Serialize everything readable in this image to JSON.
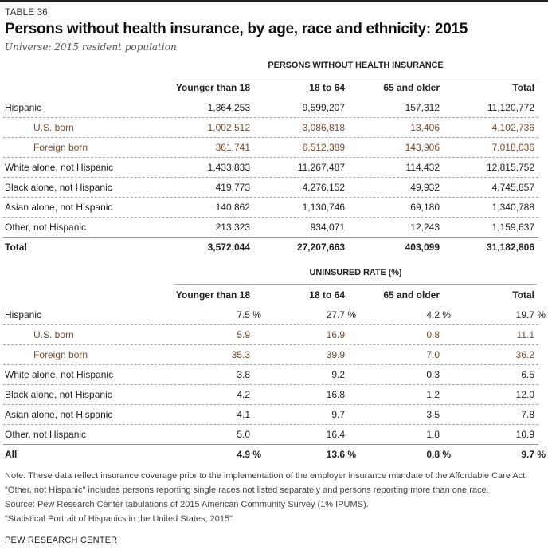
{
  "header": {
    "table_label": "TABLE 36",
    "title": "Persons without health insurance, by age, race and ethnicity: 2015",
    "subtitle": "Universe: 2015 resident population"
  },
  "columns": [
    "Younger than 18",
    "18 to 64",
    "65 and older",
    "Total"
  ],
  "tables": [
    {
      "group_label": "PERSONS WITHOUT HEALTH INSURANCE",
      "rows": [
        {
          "name": "Hispanic",
          "type": "main",
          "values": [
            "1,364,253",
            "9,599,207",
            "157,312",
            "11,120,772"
          ]
        },
        {
          "name": "U.S. born",
          "type": "sub",
          "values": [
            "1,002,512",
            "3,086,818",
            "13,406",
            "4,102,736"
          ]
        },
        {
          "name": "Foreign born",
          "type": "sub",
          "values": [
            "361,741",
            "6,512,389",
            "143,906",
            "7,018,036"
          ]
        },
        {
          "name": "White alone, not Hispanic",
          "type": "main",
          "values": [
            "1,433,833",
            "11,267,487",
            "114,432",
            "12,815,752"
          ]
        },
        {
          "name": "Black alone, not Hispanic",
          "type": "main",
          "values": [
            "419,773",
            "4,276,152",
            "49,932",
            "4,745,857"
          ]
        },
        {
          "name": "Asian alone, not Hispanic",
          "type": "main",
          "values": [
            "140,862",
            "1,130,746",
            "69,180",
            "1,340,788"
          ]
        },
        {
          "name": "Other, not Hispanic",
          "type": "main",
          "values": [
            "213,323",
            "934,071",
            "12,243",
            "1,159,637"
          ]
        },
        {
          "name": "Total",
          "type": "total",
          "values": [
            "3,572,044",
            "27,207,663",
            "403,099",
            "31,182,806"
          ]
        }
      ]
    },
    {
      "group_label": "UNINSURED RATE (%)",
      "rows": [
        {
          "name": "Hispanic",
          "type": "main",
          "values": [
            "7.5 %",
            "27.7 %",
            "4.2 %",
            "19.7 %"
          ]
        },
        {
          "name": "U.S. born",
          "type": "sub",
          "values": [
            "5.9",
            "16.9",
            "0.8",
            "11.1"
          ]
        },
        {
          "name": "Foreign born",
          "type": "sub",
          "values": [
            "35.3",
            "39.9",
            "7.0",
            "36.2"
          ]
        },
        {
          "name": "White alone, not Hispanic",
          "type": "main",
          "values": [
            "3.8",
            "9.2",
            "0.3",
            "6.5"
          ]
        },
        {
          "name": "Black alone, not Hispanic",
          "type": "main",
          "values": [
            "4.2",
            "16.8",
            "1.2",
            "12.0"
          ]
        },
        {
          "name": "Asian alone, not Hispanic",
          "type": "main",
          "values": [
            "4.1",
            "9.7",
            "3.5",
            "7.8"
          ]
        },
        {
          "name": "Other, not Hispanic",
          "type": "main",
          "values": [
            "5.0",
            "16.4",
            "1.8",
            "10.9"
          ]
        },
        {
          "name": "All",
          "type": "total",
          "values": [
            "4.9 %",
            "13.6 %",
            "0.8 %",
            "9.7 %"
          ]
        }
      ]
    }
  ],
  "notes": {
    "note": "Note: These data reflect insurance coverage prior to the implementation of the employer insurance mandate of the Affordable Care Act. \"Other, not Hispanic\" includes persons reporting single races not listed separately and persons reporting more than one race.",
    "source": "Source: Pew Research Center tabulations of 2015 American Community Survey (1% IPUMS).",
    "report": "\"Statistical Portrait of Hispanics in the United States, 2015\""
  },
  "footer": "PEW RESEARCH CENTER",
  "colors": {
    "sub_row_text": "#7b4a2a",
    "text": "#222222",
    "rule": "#aaaaaa"
  }
}
